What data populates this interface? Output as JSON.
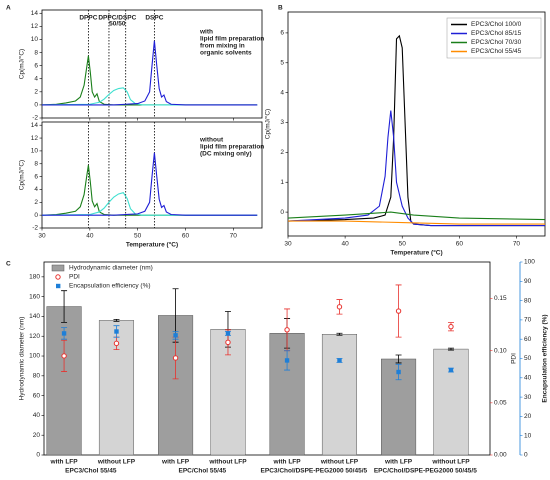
{
  "chart_data": [
    {
      "type": "line",
      "label": "A",
      "ylabel": "Cp(mJ/°C)",
      "xlim": [
        30,
        76
      ],
      "xticks": [
        30,
        40,
        50,
        60,
        70
      ],
      "ylim": [
        -2,
        14.5
      ],
      "yticks": [
        -2,
        0,
        2,
        4,
        6,
        8,
        10,
        12,
        14
      ],
      "peak_labels": [
        "DPPC",
        "DPPC/DSPC",
        "50/50",
        "DSPC"
      ],
      "annotation": [
        "with",
        "lipid film preparation",
        "from mixing in",
        "organic solvents"
      ],
      "vlines": [
        39.7,
        44,
        47.5,
        53.5
      ],
      "series": [
        {
          "color": "#1a7f1a",
          "x": [
            30,
            33,
            35,
            37,
            38,
            38.8,
            39.3,
            39.7,
            40.1,
            40.5,
            41,
            41.5,
            42,
            43,
            45,
            50,
            60,
            75
          ],
          "values": [
            0,
            0.1,
            0.3,
            0.6,
            1.2,
            3,
            5.5,
            7.5,
            5,
            2,
            1.2,
            1.7,
            0.5,
            0.1,
            0,
            0,
            0,
            0
          ]
        },
        {
          "color": "#3fe0d0",
          "x": [
            30,
            40,
            42,
            43,
            44,
            45,
            46,
            47,
            47.8,
            48.5,
            49.5,
            51,
            55,
            75
          ],
          "values": [
            0,
            0.1,
            0.4,
            0.9,
            1.6,
            2.2,
            2.5,
            2.6,
            2,
            0.8,
            0.2,
            0,
            0,
            0
          ]
        },
        {
          "color": "#1f1fd6",
          "x": [
            30,
            45,
            50,
            51.5,
            52.5,
            53,
            53.5,
            54,
            54.5,
            55,
            55.5,
            56,
            57,
            60,
            75
          ],
          "values": [
            0,
            0,
            0.2,
            0.6,
            2,
            6,
            9.8,
            6,
            2.5,
            1.2,
            1.5,
            0.5,
            0.1,
            0,
            0
          ]
        }
      ]
    },
    {
      "type": "line",
      "ylabel": "Cp(mJ/°C)",
      "xlabel": "Temperature (°C)",
      "xlim": [
        30,
        76
      ],
      "xticks": [
        30,
        40,
        50,
        60,
        70
      ],
      "ylim": [
        -2,
        14.5
      ],
      "yticks": [
        -2,
        0,
        2,
        4,
        6,
        8,
        10,
        12,
        14
      ],
      "annotation": [
        "without",
        "lipid film preparation",
        "(DC mixing only)"
      ],
      "vlines": [
        39.7,
        44,
        47.5,
        53.5
      ],
      "series": [
        {
          "color": "#1a7f1a",
          "x": [
            30,
            33,
            35,
            37,
            38,
            38.8,
            39.3,
            39.7,
            40.1,
            40.5,
            41,
            41.5,
            42,
            43,
            45,
            50,
            60,
            75
          ],
          "values": [
            0,
            0.1,
            0.3,
            0.6,
            1.3,
            3.2,
            5.8,
            7.8,
            5.2,
            2.2,
            1.3,
            1.8,
            0.5,
            0.1,
            0,
            0,
            0,
            0
          ]
        },
        {
          "color": "#3fe0d0",
          "x": [
            30,
            40,
            42,
            43,
            44,
            45,
            46,
            47,
            47.8,
            48.5,
            49.5,
            51,
            55,
            75
          ],
          "values": [
            0,
            0.1,
            0.5,
            1.1,
            2,
            2.8,
            3.3,
            3.5,
            2.6,
            1,
            0.2,
            0,
            0,
            0
          ]
        },
        {
          "color": "#1f1fd6",
          "x": [
            30,
            45,
            50,
            51.5,
            52.5,
            53,
            53.5,
            54,
            54.5,
            55,
            55.5,
            56,
            57,
            60,
            75
          ],
          "values": [
            0,
            0,
            0.2,
            0.6,
            2,
            6,
            9.7,
            6,
            2.5,
            1.2,
            1.5,
            0.5,
            0.1,
            0,
            0
          ]
        }
      ]
    },
    {
      "type": "line",
      "label": "B",
      "ylabel": "Cp(mJ/°C)",
      "xlabel": "Temperature (°C)",
      "xlim": [
        30,
        75
      ],
      "xticks": [
        30,
        40,
        50,
        60,
        70
      ],
      "ylim": [
        -0.8,
        6.7
      ],
      "yticks": [
        0,
        1,
        2,
        3,
        4,
        5,
        6
      ],
      "legend": "upper right",
      "series": [
        {
          "name": "EPC3/Chol 100/0",
          "color": "#000000",
          "x": [
            30,
            40,
            45,
            47,
            48,
            48.5,
            49,
            49.5,
            50,
            50.5,
            51,
            51.5,
            52,
            55,
            60,
            75
          ],
          "values": [
            -0.3,
            -0.25,
            -0.2,
            -0.1,
            0.5,
            2.5,
            5.8,
            5.9,
            5.5,
            3,
            0.5,
            -0.3,
            -0.4,
            -0.45,
            -0.45,
            -0.45
          ]
        },
        {
          "name": "EPC3/Chol 85/15",
          "color": "#1f1fd6",
          "x": [
            30,
            40,
            44,
            46,
            47,
            47.5,
            48,
            48.5,
            49,
            50,
            51,
            52,
            55,
            75
          ],
          "values": [
            -0.3,
            -0.2,
            -0.1,
            0.2,
            1.2,
            2.5,
            3.4,
            2.5,
            1,
            0.2,
            -0.2,
            -0.4,
            -0.45,
            -0.45
          ]
        },
        {
          "name": "EPC3/Chol 70/30",
          "color": "#1a7f1a",
          "x": [
            30,
            40,
            48,
            52,
            60,
            75
          ],
          "values": [
            -0.2,
            -0.1,
            0,
            -0.1,
            -0.2,
            -0.25
          ]
        },
        {
          "name": "EPC3/Chol 55/45",
          "color": "#ff8c00",
          "x": [
            30,
            40,
            50,
            60,
            75
          ],
          "values": [
            -0.3,
            -0.3,
            -0.35,
            -0.4,
            -0.4
          ]
        }
      ]
    },
    {
      "type": "bar",
      "label": "C",
      "categories": [
        "with LFP",
        "without LFP",
        "with LFP",
        "without LFP",
        "with LFP",
        "without LFP",
        "with LFP",
        "without LFP"
      ],
      "groups": [
        "EPC3/Chol 55/45",
        "EPC/Chol 55/45",
        "EPC3/Chol/DSPE-PEG2000 50/45/5",
        "EPC/Chol/DSPE-PEG2000 50/45/5"
      ],
      "ylabel": "Hydrodynamic diameter (nm)",
      "y2label": "PDI",
      "y3label": "Encapsulation efficiency (%)",
      "ylim": [
        0,
        195
      ],
      "yticks": [
        0,
        20,
        40,
        60,
        80,
        100,
        120,
        140,
        160,
        180
      ],
      "y2lim": [
        0,
        0.185
      ],
      "y2ticks": [
        {
          "value": 0,
          "label": "0.00"
        },
        {
          "value": 0.05,
          "label": "0.05"
        },
        {
          "value": 0.1,
          "label": "0.10"
        },
        {
          "value": 0.15,
          "label": "0.15"
        }
      ],
      "y3lim": [
        0,
        100
      ],
      "y3ticks": [
        0,
        10,
        20,
        30,
        40,
        50,
        60,
        70,
        80,
        90,
        100
      ],
      "y2color": "#e8322e",
      "y3color": "#1e7fd8",
      "series": [
        {
          "name": "Hydrodynamic diameter (nm)",
          "colors": [
            "#9e9e9e",
            "#d4d4d4",
            "#9e9e9e",
            "#d4d4d4",
            "#9e9e9e",
            "#d4d4d4",
            "#9e9e9e",
            "#d4d4d4"
          ],
          "values": [
            150,
            136,
            141,
            127,
            123,
            122,
            97,
            107
          ],
          "errors": [
            16,
            1,
            27,
            18,
            15,
            1,
            4,
            1
          ]
        },
        {
          "name": "PDI",
          "color": "#e8322e",
          "axis": "y2",
          "values": [
            0.095,
            0.107,
            0.093,
            0.108,
            0.12,
            0.142,
            0.138,
            0.123
          ],
          "errors": [
            0.015,
            0.006,
            0.02,
            0.012,
            0.02,
            0.007,
            0.025,
            0.004
          ]
        },
        {
          "name": "Encapsulation efficiency (%)",
          "color": "#1e7fd8",
          "axis": "y3",
          "values": [
            63,
            64,
            62,
            63,
            49,
            49,
            43,
            44
          ],
          "errors": [
            3,
            3,
            2,
            1,
            5,
            1,
            4,
            1
          ]
        }
      ]
    }
  ]
}
